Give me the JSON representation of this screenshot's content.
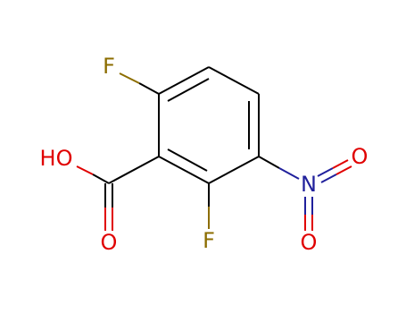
{
  "atoms": [
    {
      "label": "F"
    },
    {
      "label": "HO"
    },
    {
      "label": "O"
    },
    {
      "label": "F"
    },
    {
      "label": "N"
    },
    {
      "label": "O"
    },
    {
      "label": "O"
    }
  ]
}
